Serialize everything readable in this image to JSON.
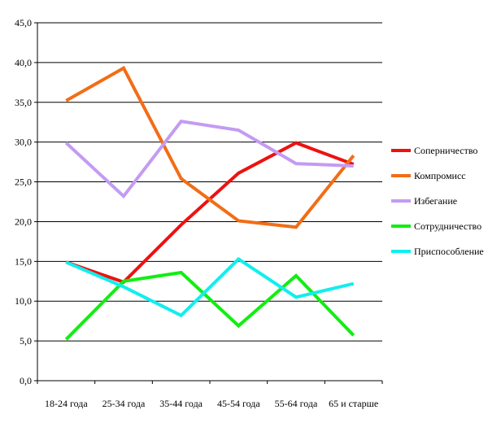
{
  "chart_data": {
    "type": "line",
    "title": "",
    "xlabel": "",
    "ylabel": "",
    "ylim": [
      0,
      45
    ],
    "y_ticks": [
      "0,0",
      "5,0",
      "10,0",
      "15,0",
      "20,0",
      "25,0",
      "30,0",
      "35,0",
      "40,0",
      "45,0"
    ],
    "grid": true,
    "legend_position": "right",
    "categories": [
      "18-24 года",
      "25-34 года",
      "35-44 года",
      "45-54 года",
      "55-64 года",
      "65 и старше"
    ],
    "series": [
      {
        "name": "Соперничество",
        "color": "#ee1111",
        "values": [
          14.9,
          12.4,
          19.6,
          26.1,
          29.9,
          27.2
        ]
      },
      {
        "name": "Компромисс",
        "color": "#f26d16",
        "values": [
          35.2,
          39.3,
          25.4,
          20.1,
          19.3,
          28.3
        ]
      },
      {
        "name": "Избегание",
        "color": "#c39bf3",
        "values": [
          29.9,
          23.2,
          32.6,
          31.5,
          27.3,
          27.0
        ]
      },
      {
        "name": "Сотрудничество",
        "color": "#11ee11",
        "values": [
          5.2,
          12.5,
          13.6,
          6.9,
          13.2,
          5.7
        ]
      },
      {
        "name": "Приспособление",
        "color": "#11eeee",
        "values": [
          14.9,
          11.8,
          8.2,
          15.3,
          10.5,
          12.2
        ]
      }
    ]
  }
}
